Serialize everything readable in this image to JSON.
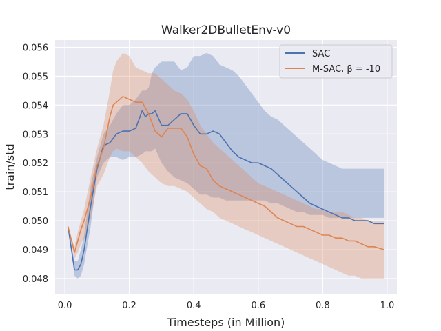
{
  "chart_data": {
    "type": "line",
    "title": "Walker2DBulletEnv-v0",
    "xlabel": "Timesteps (in Million)",
    "ylabel": "train/std",
    "xlim": [
      -0.03,
      1.03
    ],
    "ylim": [
      0.04745,
      0.05625
    ],
    "xticks": [
      0.0,
      0.2,
      0.4,
      0.6,
      0.8,
      1.0
    ],
    "xtick_labels": [
      "0.0",
      "0.2",
      "0.4",
      "0.6",
      "0.8",
      "1.0"
    ],
    "yticks": [
      0.048,
      0.049,
      0.05,
      0.051,
      0.052,
      0.053,
      0.054,
      0.055,
      0.056
    ],
    "ytick_labels": [
      "0.048",
      "0.049",
      "0.050",
      "0.051",
      "0.052",
      "0.053",
      "0.054",
      "0.055",
      "0.056"
    ],
    "grid": true,
    "legend_position": "top-right",
    "series": [
      {
        "name": "SAC",
        "color": "#4c72b0",
        "x": [
          0.01,
          0.03,
          0.04,
          0.05,
          0.06,
          0.08,
          0.1,
          0.12,
          0.14,
          0.16,
          0.18,
          0.2,
          0.22,
          0.24,
          0.25,
          0.26,
          0.27,
          0.28,
          0.3,
          0.32,
          0.34,
          0.36,
          0.38,
          0.4,
          0.42,
          0.44,
          0.46,
          0.48,
          0.5,
          0.52,
          0.54,
          0.56,
          0.58,
          0.6,
          0.62,
          0.64,
          0.66,
          0.68,
          0.7,
          0.72,
          0.74,
          0.76,
          0.78,
          0.8,
          0.82,
          0.84,
          0.86,
          0.88,
          0.9,
          0.92,
          0.94,
          0.96,
          0.99
        ],
        "y": [
          0.0498,
          0.0483,
          0.0483,
          0.0485,
          0.049,
          0.0505,
          0.0518,
          0.0526,
          0.0527,
          0.053,
          0.0531,
          0.0531,
          0.0532,
          0.0538,
          0.0536,
          0.0537,
          0.0537,
          0.0538,
          0.0533,
          0.0533,
          0.0535,
          0.0537,
          0.0537,
          0.0533,
          0.053,
          0.053,
          0.0531,
          0.053,
          0.0527,
          0.0524,
          0.0522,
          0.0521,
          0.052,
          0.052,
          0.0519,
          0.0518,
          0.0516,
          0.0514,
          0.0512,
          0.051,
          0.0508,
          0.0506,
          0.0505,
          0.0504,
          0.0503,
          0.0502,
          0.0501,
          0.0501,
          0.05,
          0.05,
          0.05,
          0.0499,
          0.0499
        ],
        "lower": [
          0.0498,
          0.0481,
          0.048,
          0.0481,
          0.0485,
          0.0498,
          0.0515,
          0.052,
          0.0522,
          0.0522,
          0.0521,
          0.0522,
          0.0522,
          0.0523,
          0.0524,
          0.0524,
          0.0524,
          0.0525,
          0.052,
          0.0517,
          0.0515,
          0.0514,
          0.0513,
          0.0511,
          0.0509,
          0.0509,
          0.0508,
          0.0508,
          0.0507,
          0.0507,
          0.0507,
          0.0507,
          0.0507,
          0.0507,
          0.0507,
          0.0506,
          0.0506,
          0.0505,
          0.0504,
          0.0503,
          0.0503,
          0.0502,
          0.0502,
          0.0502,
          0.0501,
          0.0501,
          0.0501,
          0.0501,
          0.0501,
          0.0501,
          0.0501,
          0.0501,
          0.0501
        ],
        "upper": [
          0.0498,
          0.0486,
          0.0486,
          0.049,
          0.0495,
          0.0512,
          0.0522,
          0.053,
          0.0533,
          0.0537,
          0.054,
          0.054,
          0.0542,
          0.0545,
          0.0545,
          0.0546,
          0.0551,
          0.0553,
          0.0555,
          0.0555,
          0.0555,
          0.0552,
          0.0553,
          0.0557,
          0.0557,
          0.0558,
          0.0557,
          0.0554,
          0.0553,
          0.0552,
          0.055,
          0.0547,
          0.0544,
          0.0541,
          0.0538,
          0.0536,
          0.0535,
          0.0533,
          0.0531,
          0.0529,
          0.0527,
          0.0525,
          0.0523,
          0.0521,
          0.052,
          0.0519,
          0.0518,
          0.0518,
          0.0518,
          0.0518,
          0.0518,
          0.0518,
          0.0518
        ]
      },
      {
        "name": "M-SAC, β = -10",
        "color": "#dd8452",
        "x": [
          0.01,
          0.03,
          0.04,
          0.05,
          0.06,
          0.08,
          0.1,
          0.12,
          0.14,
          0.15,
          0.16,
          0.18,
          0.2,
          0.22,
          0.24,
          0.26,
          0.28,
          0.3,
          0.32,
          0.34,
          0.36,
          0.38,
          0.4,
          0.42,
          0.44,
          0.46,
          0.48,
          0.5,
          0.52,
          0.54,
          0.56,
          0.58,
          0.6,
          0.62,
          0.64,
          0.66,
          0.68,
          0.7,
          0.72,
          0.74,
          0.76,
          0.78,
          0.8,
          0.82,
          0.84,
          0.86,
          0.88,
          0.9,
          0.92,
          0.94,
          0.96,
          0.99
        ],
        "y": [
          0.0498,
          0.0489,
          0.0493,
          0.0497,
          0.05,
          0.0508,
          0.0519,
          0.0525,
          0.0536,
          0.054,
          0.0541,
          0.0543,
          0.0542,
          0.0541,
          0.0541,
          0.0537,
          0.0531,
          0.0529,
          0.0532,
          0.0532,
          0.0532,
          0.0529,
          0.0523,
          0.0519,
          0.0518,
          0.0514,
          0.0512,
          0.0511,
          0.051,
          0.0509,
          0.0508,
          0.0507,
          0.0506,
          0.0505,
          0.0503,
          0.0501,
          0.05,
          0.0499,
          0.0498,
          0.0498,
          0.0497,
          0.0496,
          0.0495,
          0.0495,
          0.0494,
          0.0494,
          0.0493,
          0.0493,
          0.0492,
          0.0491,
          0.0491,
          0.049
        ],
        "lower": [
          0.0498,
          0.0487,
          0.0489,
          0.0492,
          0.0494,
          0.0501,
          0.0512,
          0.0516,
          0.0522,
          0.0524,
          0.0525,
          0.0524,
          0.0524,
          0.0522,
          0.052,
          0.0517,
          0.0515,
          0.0513,
          0.0512,
          0.0512,
          0.0511,
          0.051,
          0.0508,
          0.0506,
          0.0504,
          0.0503,
          0.0501,
          0.05,
          0.0499,
          0.0498,
          0.0497,
          0.0496,
          0.0495,
          0.0494,
          0.0493,
          0.0492,
          0.0491,
          0.049,
          0.0489,
          0.0488,
          0.0487,
          0.0486,
          0.0485,
          0.0484,
          0.0483,
          0.0482,
          0.0481,
          0.0481,
          0.048,
          0.048,
          0.048,
          0.048
        ],
        "upper": [
          0.0498,
          0.0491,
          0.0496,
          0.05,
          0.0504,
          0.0515,
          0.0525,
          0.0533,
          0.0545,
          0.0552,
          0.0555,
          0.0558,
          0.0557,
          0.0553,
          0.0552,
          0.0551,
          0.0551,
          0.0549,
          0.0547,
          0.0545,
          0.0544,
          0.0542,
          0.0538,
          0.0533,
          0.053,
          0.0527,
          0.0525,
          0.0523,
          0.0521,
          0.0519,
          0.0517,
          0.0515,
          0.0513,
          0.0512,
          0.0511,
          0.051,
          0.0509,
          0.0508,
          0.0507,
          0.0506,
          0.0505,
          0.0504,
          0.0504,
          0.0503,
          0.0503,
          0.0503,
          0.0502,
          0.0501,
          0.0501,
          0.05,
          0.05,
          0.05
        ]
      }
    ]
  }
}
